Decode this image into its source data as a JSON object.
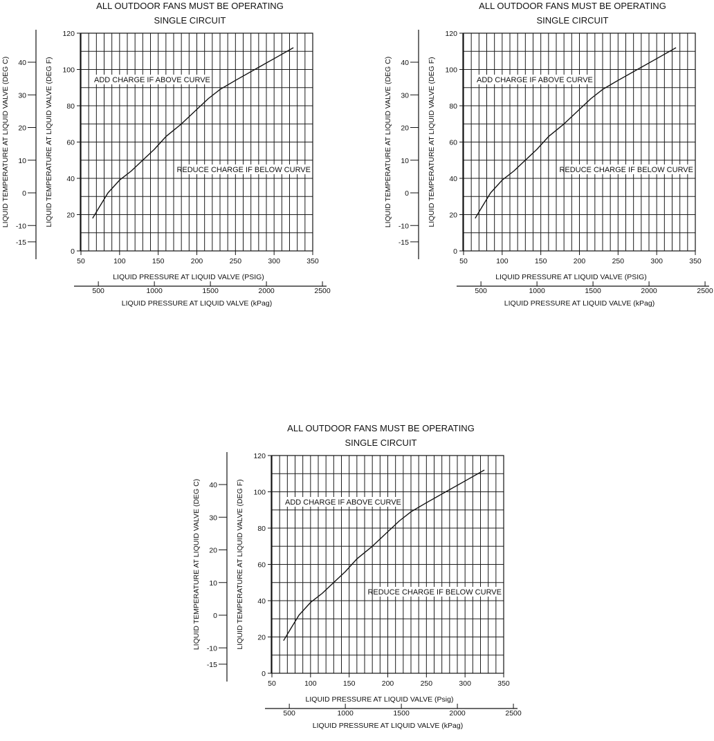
{
  "chart_data": [
    {
      "type": "line",
      "title": "ALL OUTDOOR FANS MUST BE OPERATING",
      "subtitle": "SINGLE CIRCUIT",
      "xlabel": "LIQUID PRESSURE AT LIQUID VALVE (PSIG)",
      "x2label": "LIQUID PRESSURE AT LIQUID VALVE (kPag)",
      "ylabel": "LIQUID TEMPERATURE AT LIQUID VALVE (DEG F)",
      "y2label": "LIQUID TEMPERATURE AT LIQUID VALVE (DEG C)",
      "xlim": [
        50,
        350
      ],
      "ylim": [
        0,
        120
      ],
      "xticks": [
        50,
        100,
        150,
        200,
        250,
        300,
        350
      ],
      "yticks": [
        0,
        20,
        40,
        60,
        80,
        100,
        120
      ],
      "x2ticks": [
        500,
        1000,
        1500,
        2000,
        2500
      ],
      "y2ticks": [
        -15,
        -10,
        0,
        10,
        20,
        30,
        40
      ],
      "grid": true,
      "annotations": [
        "ADD CHARGE IF ABOVE CURVE",
        "REDUCE CHARGE IF BELOW CURVE"
      ],
      "series": [
        {
          "x": [
            65,
            75,
            85,
            100,
            115,
            130,
            145,
            160,
            180,
            200,
            215,
            230,
            250,
            275,
            300,
            325
          ],
          "y": [
            18,
            25,
            32,
            39,
            44,
            50,
            56,
            63,
            70,
            78,
            84,
            89,
            94,
            100,
            106,
            112
          ]
        }
      ]
    },
    {
      "type": "line",
      "title": "ALL OUTDOOR FANS MUST BE OPERATING",
      "subtitle": "SINGLE CIRCUIT",
      "xlabel": "LIQUID PRESSURE AT LIQUID VALVE (PSIG)",
      "x2label": "LIQUID PRESSURE AT LIQUID VALVE (kPag)",
      "ylabel": "LIQUID TEMPERATURE AT LIQUID VALVE (DEG F)",
      "y2label": "LIQUID TEMPERATURE AT LIQUID VALVE (DEG C)",
      "xlim": [
        50,
        350
      ],
      "ylim": [
        0,
        120
      ],
      "xticks": [
        50,
        100,
        150,
        200,
        250,
        300,
        350
      ],
      "yticks": [
        0,
        20,
        40,
        60,
        80,
        100,
        120
      ],
      "x2ticks": [
        500,
        1000,
        1500,
        2000,
        2500
      ],
      "y2ticks": [
        -15,
        -10,
        0,
        10,
        20,
        30,
        40
      ],
      "grid": true,
      "annotations": [
        "ADD CHARGE IF ABOVE CURVE",
        "REDUCE CHARGE IF BELOW CURVE"
      ],
      "series": [
        {
          "x": [
            65,
            75,
            85,
            100,
            115,
            130,
            145,
            160,
            180,
            200,
            215,
            230,
            250,
            275,
            300,
            325
          ],
          "y": [
            18,
            25,
            32,
            39,
            44,
            50,
            56,
            63,
            70,
            78,
            84,
            89,
            94,
            100,
            106,
            112
          ]
        }
      ]
    },
    {
      "type": "line",
      "title": "ALL OUTDOOR FANS MUST BE OPERATING",
      "subtitle": "SINGLE CIRCUIT",
      "xlabel": "LIQUID PRESSURE AT LIQUID VALVE (Psig)",
      "x2label": "LIQUID PRESSURE AT LIQUID VALVE (kPag)",
      "ylabel": "LIQUID TEMPERATURE AT LIQUID VALVE (DEG F)",
      "y2label": "LIQUID TEMPERATURE AT LIQUID VALVE (DEG C)",
      "xlim": [
        50,
        350
      ],
      "ylim": [
        0,
        120
      ],
      "xticks": [
        50,
        100,
        150,
        200,
        250,
        300,
        350
      ],
      "yticks": [
        0,
        20,
        40,
        60,
        80,
        100,
        120
      ],
      "x2ticks": [
        500,
        1000,
        1500,
        2000,
        2500
      ],
      "y2ticks": [
        -15,
        -10,
        0,
        10,
        20,
        30,
        40
      ],
      "grid": true,
      "annotations": [
        "ADD CHARGE IF ABOVE CURVE",
        "REDUCE CHARGE IF BELOW CURVE"
      ],
      "series": [
        {
          "x": [
            65,
            75,
            85,
            100,
            115,
            130,
            145,
            160,
            180,
            200,
            215,
            230,
            250,
            275,
            300,
            325
          ],
          "y": [
            18,
            25,
            32,
            39,
            44,
            50,
            56,
            63,
            70,
            78,
            84,
            89,
            94,
            100,
            106,
            112
          ]
        }
      ]
    }
  ]
}
